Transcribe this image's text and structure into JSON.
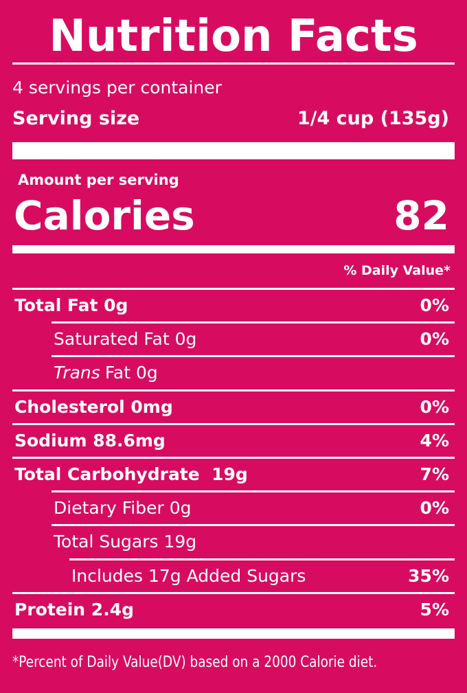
{
  "title": "Nutrition Facts",
  "servings_per_container": "4 servings per container",
  "serving_size": {
    "label": "Serving size",
    "value": "1/4 cup (135g)"
  },
  "amount_per_serving": "Amount per serving",
  "calories": {
    "label": "Calories",
    "value": "82"
  },
  "daily_value_header": "% Daily Value*",
  "rows": [
    {
      "name": "Total Fat 0g",
      "dv": "0%",
      "level": 0,
      "bold": true
    },
    {
      "name": "Saturated Fat 0g",
      "dv": "0%",
      "level": 1,
      "bold": false
    },
    {
      "prefix": "Trans",
      "name": "Fat 0g",
      "level": 1,
      "bold": false
    },
    {
      "name": "Cholesterol 0mg",
      "dv": "0%",
      "level": 0,
      "bold": true
    },
    {
      "name": "Sodium 88.6mg",
      "dv": "4%",
      "level": 0,
      "bold": true
    },
    {
      "name": "Total Carbohydrate  19g",
      "dv": "7%",
      "level": 0,
      "bold": true
    },
    {
      "name": "Dietary Fiber 0g",
      "dv": "0%",
      "level": 1,
      "bold": false
    },
    {
      "name": "Total Sugars 19g",
      "level": 1,
      "bold": false
    },
    {
      "name": "Includes 17g Added Sugars",
      "dv": "35%",
      "level": 2,
      "bold": false
    },
    {
      "name": "Protein 2.4g",
      "dv": "5%",
      "level": 0,
      "bold": true
    }
  ],
  "footnote": "*Percent of Daily Value(DV) based on a 2000 Calorie diet."
}
